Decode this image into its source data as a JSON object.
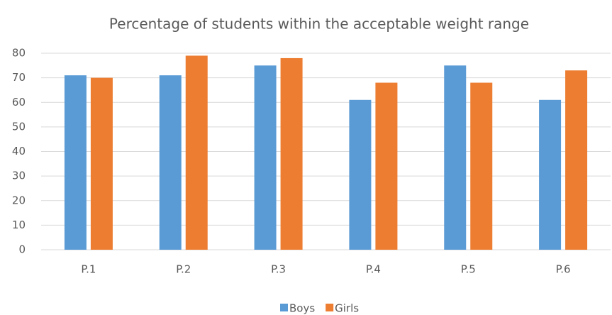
{
  "chart_data": {
    "type": "bar",
    "title": "Percentage of students within the acceptable weight range",
    "categories": [
      "P.1",
      "P.2",
      "P.3",
      "P.4",
      "P.5",
      "P.6"
    ],
    "series": [
      {
        "name": "Boys",
        "color": "#5b9bd5",
        "values": [
          71,
          71,
          75,
          61,
          75,
          61
        ]
      },
      {
        "name": "Girls",
        "color": "#ed7d31",
        "values": [
          70,
          79,
          78,
          68,
          68,
          73
        ]
      }
    ],
    "ylim": [
      0,
      80
    ],
    "yticks": [
      0,
      10,
      20,
      30,
      40,
      50,
      60,
      70,
      80
    ],
    "grid": true,
    "legend": "bottom"
  }
}
